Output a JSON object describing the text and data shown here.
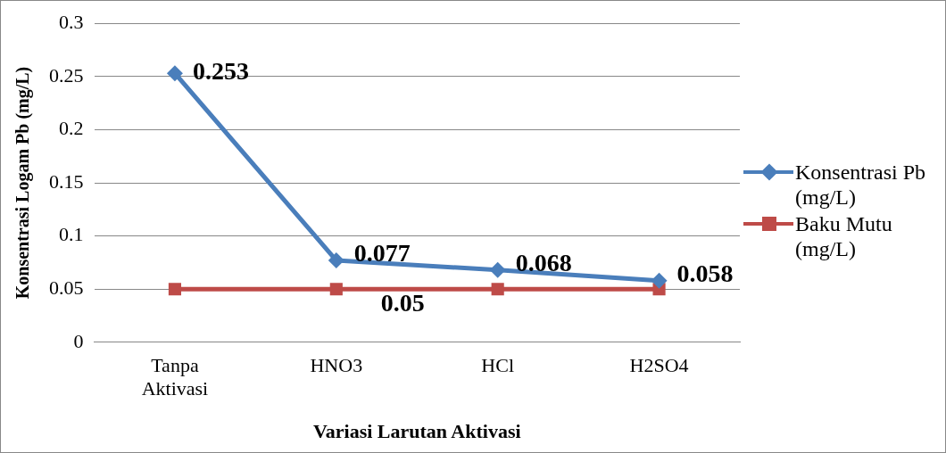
{
  "chart_data": {
    "type": "line",
    "xlabel": "Variasi Larutan Aktivasi",
    "ylabel": "Konsentrasi Logam Pb (mg/L)",
    "categories": [
      "Tanpa Aktivasi",
      "HNO3",
      "HCl",
      "H2SO4"
    ],
    "series": [
      {
        "name": "Konsentrasi Pb (mg/L)",
        "color": "#4a7ebb",
        "marker": "diamond",
        "values": [
          0.253,
          0.077,
          0.068,
          0.058
        ],
        "value_labels": [
          "0.253",
          "0.077",
          "0.068",
          "0.058"
        ]
      },
      {
        "name": "Baku Mutu (mg/L)",
        "color": "#be4b48",
        "marker": "square",
        "values": [
          0.05,
          0.05,
          0.05,
          0.05
        ],
        "value_labels": [
          null,
          "0.05",
          null,
          null
        ]
      }
    ],
    "ylim": [
      0,
      0.3
    ],
    "yticks": [
      0,
      0.05,
      0.1,
      0.15,
      0.2,
      0.25,
      0.3
    ],
    "grid": "y",
    "legend": "right",
    "line_style": "solid"
  }
}
